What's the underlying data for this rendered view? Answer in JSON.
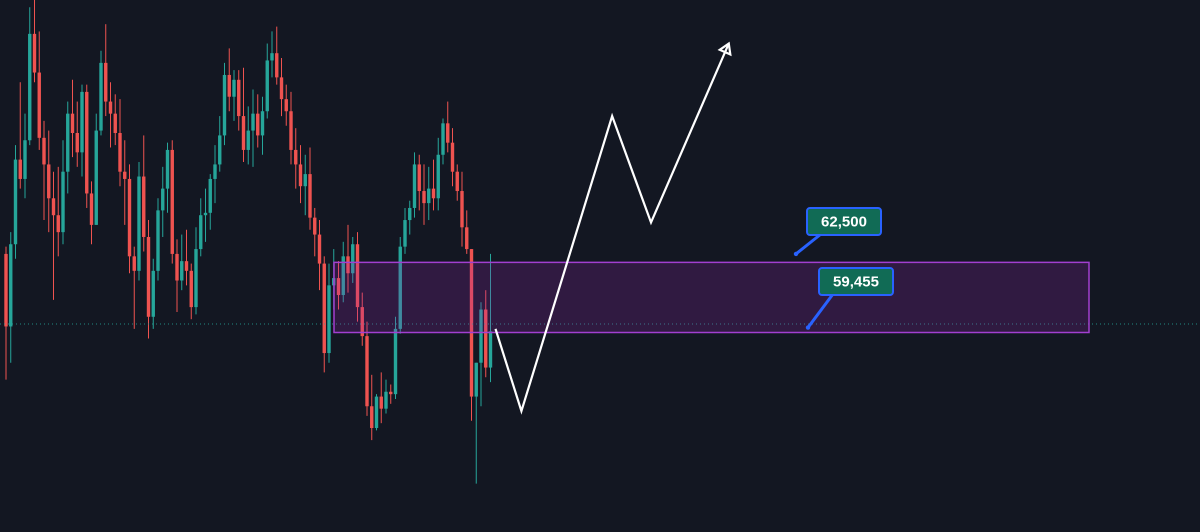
{
  "theme": {
    "background": "#131722",
    "up_color": "#26a69a",
    "down_color": "#ef5350",
    "zone_fill": "#9c27b0",
    "zone_border": "#a23fd0",
    "label_bg": "#116b55",
    "label_border": "#2962ff",
    "projection_color": "#ffffff",
    "price_line_color": "#26a69a"
  },
  "chart_data": {
    "type": "candlestick",
    "y_range": [
      51000,
      73000
    ],
    "current_price": 59600,
    "zone": {
      "upper": 62150,
      "lower": 59250
    },
    "price_labels": [
      {
        "text": "62,500",
        "value": 62500
      },
      {
        "text": "59,455",
        "value": 59455
      }
    ],
    "projection_path": [
      [
        0,
        59400
      ],
      [
        4,
        56000
      ],
      [
        18,
        68200
      ],
      [
        24,
        63800
      ],
      [
        36,
        71200
      ]
    ],
    "candles": [
      [
        62500,
        62800,
        57300,
        59500
      ],
      [
        59500,
        63400,
        58000,
        62900
      ],
      [
        62900,
        67000,
        62300,
        66400
      ],
      [
        66400,
        69600,
        65200,
        65600
      ],
      [
        65600,
        68300,
        64800,
        67200
      ],
      [
        67200,
        72700,
        67000,
        71600
      ],
      [
        71600,
        73000,
        69600,
        70000
      ],
      [
        70000,
        71700,
        66800,
        67300
      ],
      [
        67300,
        68000,
        63900,
        66200
      ],
      [
        66200,
        67600,
        63400,
        64800
      ],
      [
        64800,
        65900,
        60600,
        64100
      ],
      [
        64100,
        66100,
        62400,
        63400
      ],
      [
        63400,
        67200,
        62900,
        65900
      ],
      [
        65900,
        68800,
        65000,
        68300
      ],
      [
        68300,
        69700,
        66500,
        67500
      ],
      [
        67500,
        68800,
        66100,
        66700
      ],
      [
        66700,
        69500,
        65700,
        69200
      ],
      [
        69200,
        69500,
        64400,
        65000
      ],
      [
        65000,
        65500,
        62900,
        63700
      ],
      [
        63700,
        68300,
        63700,
        67600
      ],
      [
        67600,
        70900,
        67400,
        70400
      ],
      [
        70400,
        72000,
        68200,
        68800
      ],
      [
        68800,
        69600,
        66900,
        68300
      ],
      [
        68300,
        69100,
        67000,
        67500
      ],
      [
        67500,
        68900,
        65300,
        65900
      ],
      [
        65900,
        67200,
        63700,
        65600
      ],
      [
        65600,
        66200,
        61700,
        62400
      ],
      [
        62400,
        62800,
        59400,
        61800
      ],
      [
        61800,
        66300,
        61400,
        65700
      ],
      [
        65700,
        67400,
        62600,
        63200
      ],
      [
        63200,
        63900,
        59000,
        59900
      ],
      [
        59900,
        62300,
        59400,
        61800
      ],
      [
        61800,
        64800,
        61400,
        64300
      ],
      [
        64300,
        66100,
        63200,
        65200
      ],
      [
        65200,
        67100,
        64200,
        66800
      ],
      [
        66800,
        67200,
        62100,
        62500
      ],
      [
        62500,
        63100,
        60100,
        61400
      ],
      [
        61400,
        63300,
        61000,
        62200
      ],
      [
        62200,
        63500,
        61200,
        61800
      ],
      [
        61800,
        62100,
        59800,
        60300
      ],
      [
        60300,
        63600,
        60000,
        62700
      ],
      [
        62700,
        64800,
        62400,
        64100
      ],
      [
        64100,
        65200,
        63000,
        64200
      ],
      [
        64200,
        65800,
        63500,
        65600
      ],
      [
        65600,
        67000,
        64600,
        66200
      ],
      [
        66200,
        68200,
        65900,
        67400
      ],
      [
        67400,
        70400,
        67000,
        69900
      ],
      [
        69900,
        71000,
        68400,
        69000
      ],
      [
        69000,
        70100,
        68000,
        69700
      ],
      [
        69700,
        70100,
        67600,
        68200
      ],
      [
        68200,
        70200,
        66300,
        66800
      ],
      [
        66800,
        68600,
        66200,
        67600
      ],
      [
        67600,
        69300,
        66100,
        68300
      ],
      [
        68300,
        69100,
        66900,
        67400
      ],
      [
        67400,
        69000,
        66600,
        68400
      ],
      [
        68400,
        71200,
        68100,
        70500
      ],
      [
        70500,
        71700,
        69800,
        70800
      ],
      [
        70800,
        71900,
        69500,
        69800
      ],
      [
        69800,
        70600,
        68200,
        68900
      ],
      [
        68900,
        69500,
        67800,
        68400
      ],
      [
        68400,
        69200,
        66200,
        66800
      ],
      [
        66800,
        67700,
        65200,
        66200
      ],
      [
        66200,
        67000,
        64600,
        65300
      ],
      [
        65300,
        66600,
        64100,
        65800
      ],
      [
        65800,
        66900,
        63500,
        64000
      ],
      [
        64000,
        64400,
        62400,
        63300
      ],
      [
        63300,
        63900,
        61000,
        62100
      ],
      [
        62100,
        62400,
        57600,
        58400
      ],
      [
        58400,
        62100,
        58000,
        61200
      ],
      [
        61200,
        62700,
        60200,
        61500
      ],
      [
        61500,
        62200,
        60200,
        60800
      ],
      [
        60800,
        63000,
        60500,
        62400
      ],
      [
        62400,
        63700,
        60900,
        61700
      ],
      [
        61700,
        63200,
        61300,
        62900
      ],
      [
        62900,
        63400,
        59700,
        60300
      ],
      [
        60300,
        60900,
        58700,
        59100
      ],
      [
        59100,
        59700,
        55800,
        56200
      ],
      [
        56200,
        57500,
        54800,
        55300
      ],
      [
        55300,
        56700,
        55200,
        56600
      ],
      [
        56600,
        57600,
        55500,
        56100
      ],
      [
        56100,
        57300,
        55900,
        56800
      ],
      [
        56800,
        57100,
        56300,
        56700
      ],
      [
        56700,
        59900,
        56500,
        59400
      ],
      [
        59400,
        63200,
        59200,
        62800
      ],
      [
        62800,
        64400,
        62500,
        63900
      ],
      [
        63900,
        64700,
        63300,
        64400
      ],
      [
        64400,
        66700,
        64000,
        66200
      ],
      [
        66200,
        66600,
        64300,
        65100
      ],
      [
        65100,
        66200,
        63700,
        64600
      ],
      [
        64600,
        66100,
        63900,
        65200
      ],
      [
        65200,
        66400,
        64300,
        64800
      ],
      [
        64800,
        67300,
        64300,
        66600
      ],
      [
        66600,
        68100,
        66200,
        67900
      ],
      [
        67900,
        68800,
        66700,
        67100
      ],
      [
        67100,
        67700,
        65300,
        65900
      ],
      [
        65900,
        66200,
        64700,
        65100
      ],
      [
        65100,
        65900,
        62800,
        63600
      ],
      [
        63600,
        64300,
        62500,
        62700
      ],
      [
        62700,
        62700,
        55600,
        56600
      ],
      [
        56600,
        58000,
        53000,
        58000
      ],
      [
        58000,
        60500,
        56200,
        60200
      ],
      [
        60200,
        61000,
        57400,
        57800
      ],
      [
        57800,
        62500,
        57200,
        59300
      ]
    ]
  }
}
